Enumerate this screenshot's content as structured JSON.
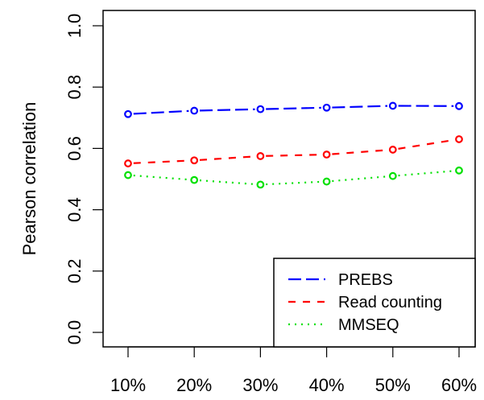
{
  "chart_data": {
    "type": "line",
    "title": "",
    "xlabel": "",
    "ylabel": "Pearson correlation",
    "categories": [
      "10%",
      "20%",
      "30%",
      "40%",
      "50%",
      "60%"
    ],
    "ylim": [
      0.0,
      1.0
    ],
    "yticks": [
      "0.0",
      "0.2",
      "0.4",
      "0.6",
      "0.8",
      "1.0"
    ],
    "grid": false,
    "legend_position": "bottom-right",
    "series": [
      {
        "name": "PREBS",
        "color": "#0000ff",
        "line_style": "long-dash",
        "marker": "open-circle",
        "values": [
          0.712,
          0.723,
          0.728,
          0.733,
          0.739,
          0.738
        ]
      },
      {
        "name": "Read counting",
        "color": "#ff0000",
        "line_style": "dashed",
        "marker": "open-circle",
        "values": [
          0.551,
          0.561,
          0.575,
          0.58,
          0.596,
          0.63
        ]
      },
      {
        "name": "MMSEQ",
        "color": "#00e000",
        "line_style": "dotted",
        "marker": "open-circle",
        "values": [
          0.513,
          0.497,
          0.482,
          0.492,
          0.51,
          0.528
        ]
      }
    ]
  }
}
